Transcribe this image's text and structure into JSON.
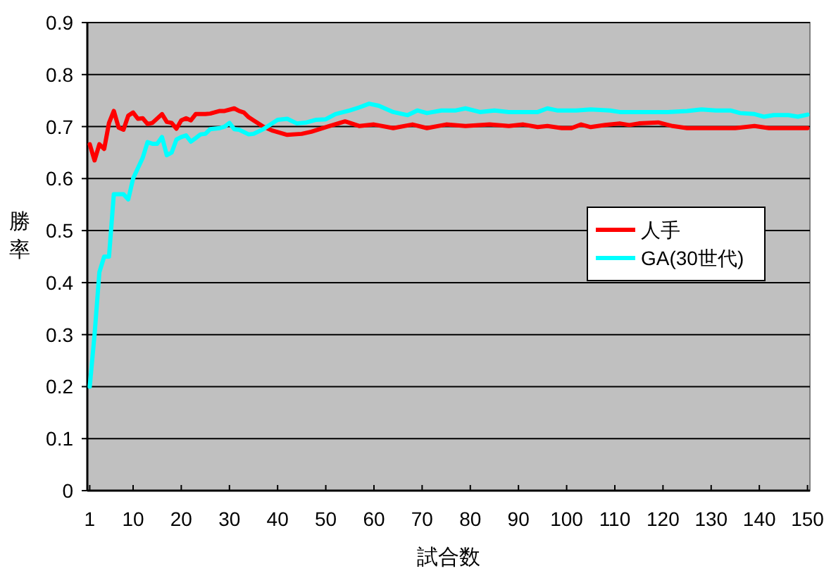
{
  "chart_data": {
    "type": "line",
    "xlabel": "試合数",
    "ylabel": "勝率",
    "xlim": [
      0.5,
      150.5
    ],
    "xticks": [
      1,
      10,
      20,
      30,
      40,
      50,
      60,
      70,
      80,
      90,
      100,
      110,
      120,
      130,
      140,
      150
    ],
    "ylim": [
      0,
      0.9
    ],
    "yticks": [
      0,
      0.1,
      0.2,
      0.3,
      0.4,
      0.5,
      0.6,
      0.7,
      0.8,
      0.9
    ],
    "grid": "y",
    "legend": "right",
    "marker": "none",
    "line_style": "solid",
    "series": [
      {
        "name": "人手",
        "color": "#ff0000",
        "x": [
          1,
          2,
          3,
          4,
          5,
          6,
          7,
          8,
          9,
          10,
          11,
          12,
          13,
          14,
          16,
          17,
          18,
          19,
          20,
          21,
          22,
          23,
          25,
          26,
          28,
          29,
          31,
          32,
          33,
          34,
          35,
          37,
          39,
          42,
          45,
          47,
          50,
          54,
          57,
          60,
          64,
          68,
          71,
          75,
          79,
          84,
          88,
          91,
          94,
          96,
          99,
          101,
          103,
          105,
          108,
          111,
          113,
          115,
          119,
          122,
          125,
          130,
          135,
          139,
          142,
          146,
          150
        ],
        "values": [
          0.666,
          0.635,
          0.666,
          0.657,
          0.707,
          0.73,
          0.698,
          0.694,
          0.721,
          0.727,
          0.715,
          0.716,
          0.705,
          0.707,
          0.724,
          0.709,
          0.707,
          0.696,
          0.712,
          0.716,
          0.712,
          0.724,
          0.724,
          0.725,
          0.73,
          0.73,
          0.735,
          0.73,
          0.727,
          0.718,
          0.712,
          0.7,
          0.692,
          0.684,
          0.686,
          0.69,
          0.699,
          0.71,
          0.701,
          0.704,
          0.697,
          0.704,
          0.697,
          0.704,
          0.701,
          0.704,
          0.701,
          0.704,
          0.699,
          0.701,
          0.697,
          0.697,
          0.704,
          0.699,
          0.703,
          0.706,
          0.703,
          0.706,
          0.708,
          0.701,
          0.697,
          0.697,
          0.697,
          0.701,
          0.697,
          0.697,
          0.697
        ]
      },
      {
        "name": "GA(30世代)",
        "color": "#00ffff",
        "x": [
          1,
          2,
          3,
          4,
          5,
          6,
          7,
          8,
          9,
          10,
          11,
          12,
          13,
          14,
          15,
          16,
          17,
          18,
          19,
          20,
          21,
          22,
          23,
          24,
          25,
          26,
          28,
          29,
          30,
          31,
          32,
          34,
          35,
          37,
          40,
          42,
          44,
          46,
          48,
          50,
          52,
          55,
          57,
          59,
          61,
          64,
          67,
          69,
          71,
          74,
          77,
          79,
          82,
          85,
          88,
          91,
          94,
          96,
          98,
          102,
          105,
          109,
          111,
          115,
          121,
          125,
          128,
          131,
          134,
          136,
          139,
          141,
          143,
          146,
          148,
          150
        ],
        "values": [
          0.2,
          0.3,
          0.42,
          0.45,
          0.45,
          0.57,
          0.57,
          0.57,
          0.56,
          0.6,
          0.62,
          0.64,
          0.67,
          0.667,
          0.667,
          0.68,
          0.645,
          0.65,
          0.675,
          0.68,
          0.683,
          0.671,
          0.678,
          0.685,
          0.686,
          0.695,
          0.697,
          0.7,
          0.707,
          0.695,
          0.694,
          0.685,
          0.686,
          0.695,
          0.713,
          0.715,
          0.706,
          0.708,
          0.713,
          0.714,
          0.724,
          0.731,
          0.737,
          0.744,
          0.74,
          0.728,
          0.722,
          0.731,
          0.726,
          0.731,
          0.731,
          0.735,
          0.728,
          0.731,
          0.728,
          0.728,
          0.728,
          0.735,
          0.731,
          0.731,
          0.733,
          0.731,
          0.728,
          0.728,
          0.728,
          0.73,
          0.733,
          0.731,
          0.731,
          0.726,
          0.724,
          0.719,
          0.722,
          0.722,
          0.719,
          0.723
        ]
      }
    ]
  }
}
